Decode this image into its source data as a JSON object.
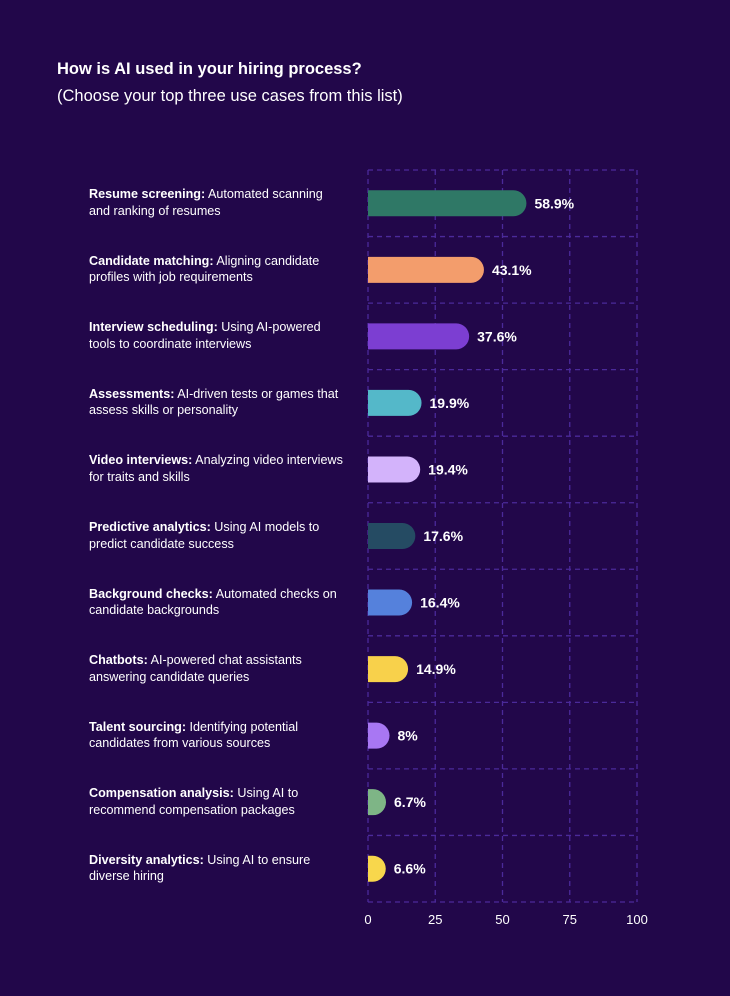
{
  "chart_data": {
    "type": "bar",
    "orientation": "horizontal",
    "title": "How is AI used in your hiring process?",
    "subtitle": "(Choose your top three use cases from this list)",
    "xlim": [
      0,
      100
    ],
    "xticks": [
      "0",
      "25",
      "50",
      "75",
      "100"
    ],
    "grid": "dashed",
    "categories": [
      {
        "bold": "Resume screening:",
        "rest": " Automated scanning and ranking of resumes",
        "value": 58.9,
        "value_label": "58.9%",
        "color": "#2f7866"
      },
      {
        "bold": "Candidate matching:",
        "rest": " Aligning candidate profiles with job requirements",
        "value": 43.1,
        "value_label": "43.1%",
        "color": "#f39d6c"
      },
      {
        "bold": "Interview scheduling:",
        "rest": " Using AI-powered tools to coordinate interviews",
        "value": 37.6,
        "value_label": "37.6%",
        "color": "#7c3ed2"
      },
      {
        "bold": "Assessments:",
        "rest": " AI-driven tests or games that assess skills or personality",
        "value": 19.9,
        "value_label": "19.9%",
        "color": "#54b8c9"
      },
      {
        "bold": "Video interviews:",
        "rest": " Analyzing video interviews for traits and skills",
        "value": 19.4,
        "value_label": "19.4%",
        "color": "#d3b3fb"
      },
      {
        "bold": "Predictive analytics:",
        "rest": " Using AI models to predict candidate success",
        "value": 17.6,
        "value_label": "17.6%",
        "color": "#254b63"
      },
      {
        "bold": "Background checks:",
        "rest": " Automated checks on candidate backgrounds",
        "value": 16.4,
        "value_label": "16.4%",
        "color": "#5581dc"
      },
      {
        "bold": "Chatbots:",
        "rest": " AI-powered chat assistants answering candidate queries",
        "value": 14.9,
        "value_label": "14.9%",
        "color": "#f8d14b"
      },
      {
        "bold": "Talent sourcing:",
        "rest": " Identifying potential candidates from various sources",
        "value": 8,
        "value_label": "8%",
        "color": "#a877f3"
      },
      {
        "bold": "Compensation analysis:",
        "rest": " Using AI to recommend compensation packages",
        "value": 6.7,
        "value_label": "6.7%",
        "color": "#7eb586"
      },
      {
        "bold": "Diversity analytics:",
        "rest": " Using AI to ensure diverse hiring",
        "value": 6.6,
        "value_label": "6.6%",
        "color": "#f8d74c"
      }
    ]
  },
  "colors": {
    "background": "#22074a",
    "grid": "#4b2a9a",
    "text": "#ffffff"
  }
}
